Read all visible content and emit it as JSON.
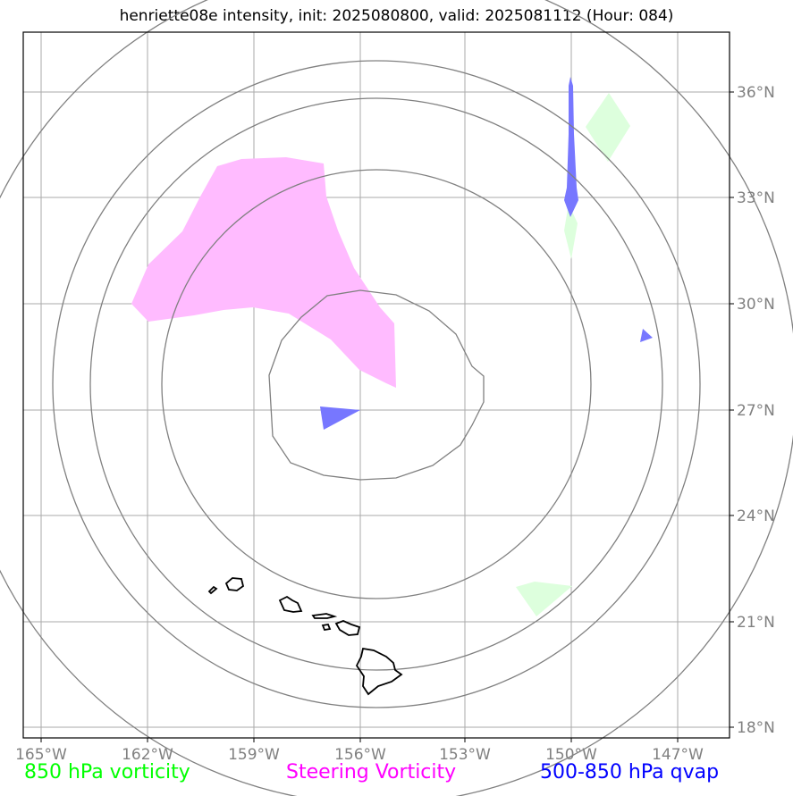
{
  "title": "henriette08e intensity, init: 2025080800, valid: 2025081112 (Hour: 084)",
  "x_ticks": [
    "165°W",
    "162°W",
    "159°W",
    "156°W",
    "153°W",
    "150°W",
    "147°W"
  ],
  "y_ticks": [
    "36°N",
    "33°N",
    "30°N",
    "27°N",
    "24°N",
    "21°N",
    "18°N"
  ],
  "legend": {
    "green": "850 hPa vorticity",
    "pink": "Steering Vorticity",
    "blue": "500-850 hPa qvap"
  },
  "colors": {
    "green_label": "#00ff00",
    "pink_label": "#ff00ff",
    "blue_label": "#0000ff",
    "green_fill": "#ddffdd",
    "pink_fill": "#ffbbff",
    "blue_fill": "#7777ff",
    "grid": "#aaaaaa",
    "range_rings": "#808080",
    "coastline": "#000000"
  },
  "map_extent": {
    "lon": [
      -165.5,
      -145.5
    ],
    "lat": [
      17.7,
      37.7
    ]
  },
  "range_ring_center": {
    "lon": -156.0,
    "lat": 27.9
  },
  "range_rings_count": 5
}
